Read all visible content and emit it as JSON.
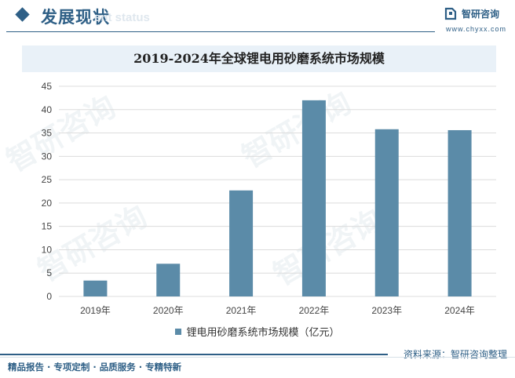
{
  "header": {
    "section_title": "发展现状",
    "section_subtitle": "ent status",
    "logo_name": "智研咨询",
    "logo_url": "www.chyxx.com"
  },
  "chart_data": {
    "type": "bar",
    "title": "2019-2024年全球锂电用砂磨系统市场规模",
    "categories": [
      "2019年",
      "2020年",
      "2021年",
      "2022年",
      "2023年",
      "2024年"
    ],
    "series": [
      {
        "name": "锂电用砂磨系统市场规模（亿元）",
        "values": [
          3.4,
          7.0,
          22.7,
          42.0,
          35.8,
          35.6
        ],
        "color": "#5b8ba8"
      }
    ],
    "yticks": [
      0,
      5,
      10,
      15,
      20,
      25,
      30,
      35,
      40,
      45
    ],
    "ylim": [
      0,
      45
    ],
    "grid": true,
    "legend": "bottom-center"
  },
  "watermark": "智研咨询",
  "footer": {
    "source": "资料来源：智研咨询整理",
    "services": "精品报告 · 专项定制 · 品质服务 · 专精特新"
  }
}
